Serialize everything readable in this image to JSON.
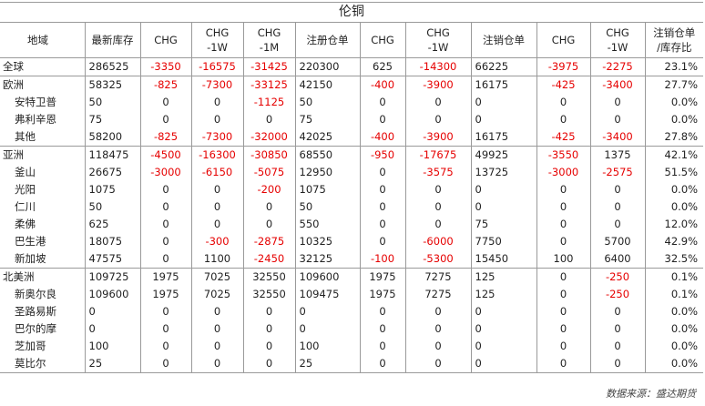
{
  "title": "伦铜",
  "headers": [
    "地域",
    "最新库存",
    "CHG",
    [
      "CHG",
      "-1W"
    ],
    [
      "CHG",
      "-1M"
    ],
    "注册仓单",
    "CHG",
    [
      "CHG",
      "-1W"
    ],
    "注销仓单",
    "CHG",
    [
      "CHG",
      "-1W"
    ],
    [
      "注销仓单",
      "/库存比"
    ]
  ],
  "colors": {
    "negative": "#e60000",
    "text": "#222222",
    "border": "#9a9a9a"
  },
  "rows": [
    {
      "region": "全球",
      "sub": false,
      "sep": true,
      "cells": [
        "286525",
        "-3350",
        "-16575",
        "-31425",
        "220300",
        "625",
        "-14300",
        "66225",
        "-3975",
        "-2275",
        "23.1%"
      ]
    },
    {
      "region": "欧洲",
      "sub": false,
      "sep": true,
      "cells": [
        "58325",
        "-825",
        "-7300",
        "-33125",
        "42150",
        "-400",
        "-3900",
        "16175",
        "-425",
        "-3400",
        "27.7%"
      ]
    },
    {
      "region": "安特卫普",
      "sub": true,
      "sep": false,
      "cells": [
        "50",
        "0",
        "0",
        "-1125",
        "50",
        "0",
        "0",
        "0",
        "0",
        "0",
        "0.0%"
      ]
    },
    {
      "region": "弗利辛恩",
      "sub": true,
      "sep": false,
      "cells": [
        "75",
        "0",
        "0",
        "0",
        "75",
        "0",
        "0",
        "0",
        "0",
        "0",
        "0.0%"
      ]
    },
    {
      "region": "其他",
      "sub": true,
      "sep": false,
      "cells": [
        "58200",
        "-825",
        "-7300",
        "-32000",
        "42025",
        "-400",
        "-3900",
        "16175",
        "-425",
        "-3400",
        "27.8%"
      ]
    },
    {
      "region": "亚洲",
      "sub": false,
      "sep": true,
      "cells": [
        "118475",
        "-4500",
        "-16300",
        "-30850",
        "68550",
        "-950",
        "-17675",
        "49925",
        "-3550",
        "1375",
        "42.1%"
      ]
    },
    {
      "region": "釜山",
      "sub": true,
      "sep": false,
      "cells": [
        "26675",
        "-3000",
        "-6150",
        "-5075",
        "12950",
        "0",
        "-3575",
        "13725",
        "-3000",
        "-2575",
        "51.5%"
      ]
    },
    {
      "region": "光阳",
      "sub": true,
      "sep": false,
      "cells": [
        "1075",
        "0",
        "0",
        "-200",
        "1075",
        "0",
        "0",
        "0",
        "0",
        "0",
        "0.0%"
      ]
    },
    {
      "region": "仁川",
      "sub": true,
      "sep": false,
      "cells": [
        "50",
        "0",
        "0",
        "0",
        "50",
        "0",
        "0",
        "0",
        "0",
        "0",
        "0.0%"
      ]
    },
    {
      "region": "柔佛",
      "sub": true,
      "sep": false,
      "cells": [
        "625",
        "0",
        "0",
        "0",
        "550",
        "0",
        "0",
        "75",
        "0",
        "0",
        "12.0%"
      ]
    },
    {
      "region": "巴生港",
      "sub": true,
      "sep": false,
      "cells": [
        "18075",
        "0",
        "-300",
        "-2875",
        "10325",
        "0",
        "-6000",
        "7750",
        "0",
        "5700",
        "42.9%"
      ]
    },
    {
      "region": "新加坡",
      "sub": true,
      "sep": false,
      "cells": [
        "47575",
        "0",
        "1100",
        "-2450",
        "32125",
        "-100",
        "-5300",
        "15450",
        "100",
        "6400",
        "32.5%"
      ]
    },
    {
      "region": "北美洲",
      "sub": false,
      "sep": true,
      "cells": [
        "109725",
        "1975",
        "7025",
        "32550",
        "109600",
        "1975",
        "7275",
        "125",
        "0",
        "-250",
        "0.1%"
      ]
    },
    {
      "region": "新奥尔良",
      "sub": true,
      "sep": false,
      "cells": [
        "109600",
        "1975",
        "7025",
        "32550",
        "109475",
        "1975",
        "7275",
        "125",
        "0",
        "-250",
        "0.1%"
      ]
    },
    {
      "region": "圣路易斯",
      "sub": true,
      "sep": false,
      "cells": [
        "0",
        "0",
        "0",
        "0",
        "0",
        "0",
        "0",
        "0",
        "0",
        "0",
        "0.0%"
      ]
    },
    {
      "region": "巴尔的摩",
      "sub": true,
      "sep": false,
      "cells": [
        "0",
        "0",
        "0",
        "0",
        "0",
        "0",
        "0",
        "0",
        "0",
        "0",
        "0.0%"
      ]
    },
    {
      "region": "芝加哥",
      "sub": true,
      "sep": false,
      "cells": [
        "100",
        "0",
        "0",
        "0",
        "100",
        "0",
        "0",
        "0",
        "0",
        "0",
        "0.0%"
      ]
    },
    {
      "region": "莫比尔",
      "sub": true,
      "sep": false,
      "cells": [
        "25",
        "0",
        "0",
        "0",
        "25",
        "0",
        "0",
        "0",
        "0",
        "0",
        "0.0%"
      ]
    }
  ],
  "footer": "数据来源：盛达期货"
}
